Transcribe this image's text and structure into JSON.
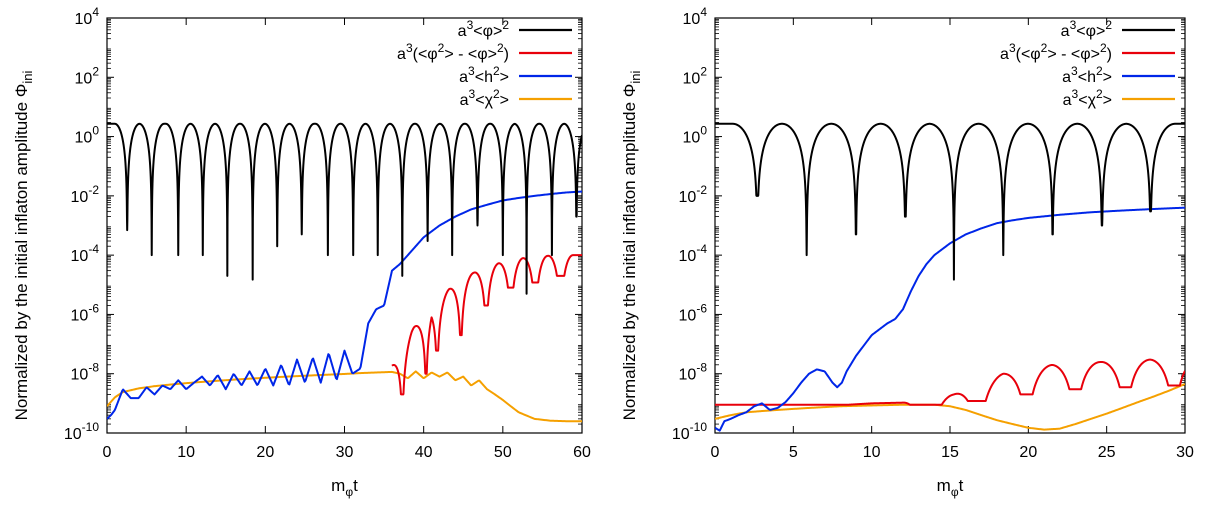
{
  "chart_data": [
    {
      "type": "line",
      "xlabel": "m_φ t",
      "ylabel": "Normalized by the initial inflaton amplitude Φ_ini",
      "xlim": [
        0,
        60
      ],
      "ylim": [
        1e-10,
        10000.0
      ],
      "yscale": "log",
      "grid": false,
      "legend_position": "top-right",
      "x_ticks": [
        0,
        10,
        20,
        30,
        40,
        50,
        60
      ],
      "y_ticks": [
        {
          "base": "10",
          "exp": "4"
        },
        {
          "base": "10",
          "exp": "2"
        },
        {
          "base": "10",
          "exp": "0"
        },
        {
          "base": "10",
          "exp": "-2"
        },
        {
          "base": "10",
          "exp": "-4"
        },
        {
          "base": "10",
          "exp": "-6"
        },
        {
          "base": "10",
          "exp": "-8"
        },
        {
          "base": "10",
          "exp": "-10"
        }
      ],
      "series": [
        {
          "name": "a³<φ>²",
          "color": "#000000",
          "style": "oscillating_log",
          "peak": 2.7,
          "period": 3.14,
          "phase": 0.0,
          "dips": [
            [
              2.55,
              0.0007
            ],
            [
              5.65,
              0.0001
            ],
            [
              9.0,
              0.0001
            ],
            [
              12.1,
              0.0001
            ],
            [
              15.2,
              2e-05
            ],
            [
              18.4,
              1.5e-05
            ],
            [
              21.5,
              0.0002
            ],
            [
              24.6,
              0.0005
            ],
            [
              27.9,
              0.0001
            ],
            [
              31.1,
              0.0001
            ],
            [
              34.2,
              0.0001
            ],
            [
              37.3,
              2e-05
            ],
            [
              40.5,
              0.0003
            ],
            [
              43.6,
              0.0001
            ],
            [
              46.8,
              0.001
            ],
            [
              50.0,
              0.0001
            ],
            [
              53.0,
              5e-06
            ],
            [
              56.2,
              0.0001
            ],
            [
              59.3,
              0.002
            ]
          ]
        },
        {
          "name": "a³(<φ²> - <φ>²)",
          "color": "#e8000b",
          "style": "oscillating_log",
          "period": 3.14,
          "envelope": [
            [
              36,
              2e-08
            ],
            [
              38.5,
              3e-07
            ],
            [
              41.6,
              3e-06
            ],
            [
              44.7,
              1.6e-05
            ],
            [
              47.9,
              4e-05
            ],
            [
              51.0,
              7e-05
            ],
            [
              54.1,
              9e-05
            ],
            [
              57.3,
              0.0001
            ],
            [
              60,
              0.0001
            ]
          ],
          "dips": [
            [
              37.3,
              2e-09
            ],
            [
              40.3,
              1e-08
            ],
            [
              41.7,
              6e-08
            ],
            [
              44.7,
              2e-07
            ],
            [
              47.9,
              2e-06
            ],
            [
              51.0,
              8e-06
            ],
            [
              54.1,
              1.2e-05
            ],
            [
              57.3,
              2e-05
            ]
          ]
        },
        {
          "name": "a³<h²>",
          "color": "#0026e8",
          "style": "polyline",
          "x": [
            0,
            0.5,
            1,
            2,
            3,
            4,
            5,
            6,
            7,
            8,
            9,
            10,
            11,
            12,
            13,
            14,
            15,
            16,
            17,
            18,
            19,
            20,
            21,
            22,
            23,
            24,
            25,
            26,
            27,
            28,
            29,
            30,
            31,
            32,
            33,
            34,
            35,
            36,
            37,
            38,
            39,
            40,
            42,
            44,
            46,
            48,
            50,
            52,
            54,
            56,
            58,
            60
          ],
          "y": [
            3e-10,
            4e-10,
            6e-10,
            3e-09,
            1.5e-09,
            1.5e-09,
            3.5e-09,
            2e-09,
            4e-09,
            3e-09,
            6e-09,
            3e-09,
            5e-09,
            8e-09,
            4e-09,
            9e-09,
            3e-09,
            1e-08,
            4e-09,
            1.2e-08,
            4e-09,
            1.5e-08,
            4e-09,
            2e-08,
            4e-09,
            3e-08,
            5e-09,
            3.5e-08,
            5e-09,
            5e-08,
            6e-09,
            6e-08,
            1e-08,
            1.5e-08,
            5e-07,
            1.5e-06,
            2e-06,
            3e-05,
            5e-05,
            0.0001,
            0.0002,
            0.0004,
            0.001,
            0.002,
            0.0035,
            0.005,
            0.007,
            0.0085,
            0.01,
            0.0115,
            0.013,
            0.014
          ]
        },
        {
          "name": "a³<χ²>",
          "color": "#f5a000",
          "style": "polyline",
          "x": [
            0,
            1,
            2,
            4,
            6,
            8,
            10,
            12,
            14,
            16,
            18,
            20,
            22,
            24,
            26,
            28,
            30,
            32,
            34,
            36,
            37,
            38,
            39,
            40,
            41,
            42,
            43,
            44,
            45,
            46,
            47,
            48,
            49,
            50,
            51,
            52,
            54,
            56,
            58,
            60
          ],
          "y": [
            8e-10,
            1.6e-09,
            2.4e-09,
            3.2e-09,
            3.8e-09,
            4.3e-09,
            4.8e-09,
            5.3e-09,
            5.8e-09,
            6.3e-09,
            6.8e-09,
            7.3e-09,
            7.8e-09,
            8.3e-09,
            8.8e-09,
            9.3e-09,
            9.8e-09,
            1.05e-08,
            1.1e-08,
            1.15e-08,
            1e-08,
            7e-09,
            1.2e-08,
            7e-09,
            1.1e-08,
            8e-09,
            1.1e-08,
            6e-09,
            8e-09,
            4e-09,
            6e-09,
            3e-09,
            2e-09,
            1.3e-09,
            8e-10,
            5e-10,
            3e-10,
            2.6e-10,
            2.5e-10,
            2.5e-10
          ]
        }
      ]
    },
    {
      "type": "line",
      "xlabel": "m_φ t",
      "ylabel": "Normalized by the initial inflaton amplitude Φ_ini",
      "xlim": [
        0,
        30
      ],
      "ylim": [
        1e-10,
        10000.0
      ],
      "yscale": "log",
      "grid": false,
      "legend_position": "top-right",
      "x_ticks": [
        0,
        5,
        10,
        15,
        20,
        25,
        30
      ],
      "y_ticks": [
        {
          "base": "10",
          "exp": "4"
        },
        {
          "base": "10",
          "exp": "2"
        },
        {
          "base": "10",
          "exp": "0"
        },
        {
          "base": "10",
          "exp": "-2"
        },
        {
          "base": "10",
          "exp": "-4"
        },
        {
          "base": "10",
          "exp": "-6"
        },
        {
          "base": "10",
          "exp": "-8"
        },
        {
          "base": "10",
          "exp": "-10"
        }
      ],
      "series": [
        {
          "name": "a³<φ>²",
          "color": "#000000",
          "style": "oscillating_log",
          "peak": 2.7,
          "period": 3.14,
          "phase": -1.0,
          "dips": [
            [
              2.7,
              0.01
            ],
            [
              5.85,
              0.0001
            ],
            [
              9.0,
              0.0005
            ],
            [
              12.15,
              0.002
            ],
            [
              15.25,
              1.5e-05
            ],
            [
              18.4,
              0.0001
            ],
            [
              21.55,
              0.0005
            ],
            [
              24.7,
              0.001
            ],
            [
              27.8,
              0.003
            ]
          ]
        },
        {
          "name": "a³(<φ²> - <φ>²)",
          "color": "#e8000b",
          "style": "oscillating_log",
          "period": 3.14,
          "envelope": [
            [
              0,
              2e-10
            ],
            [
              5,
              7e-10
            ],
            [
              10,
              1e-09
            ],
            [
              13.5,
              1.1e-09
            ],
            [
              15.25,
              2e-09
            ],
            [
              18.4,
              1e-08
            ],
            [
              21.55,
              2e-08
            ],
            [
              24.7,
              2.5e-08
            ],
            [
              27.8,
              3e-08
            ],
            [
              30,
              3e-08
            ]
          ],
          "dips": [
            [
              13.6,
              9e-10
            ],
            [
              16.8,
              1.2e-09
            ],
            [
              19.9,
              2e-09
            ],
            [
              23.0,
              3e-09
            ],
            [
              26.2,
              3.5e-09
            ],
            [
              29.3,
              4e-09
            ]
          ]
        },
        {
          "name": "a³<h²>",
          "color": "#0026e8",
          "style": "polyline",
          "x": [
            0,
            0.3,
            0.6,
            1,
            1.5,
            2,
            2.5,
            3,
            3.5,
            4,
            4.5,
            5,
            5.5,
            6,
            6.5,
            7,
            7.5,
            7.8,
            8.1,
            8.4,
            9,
            10,
            11,
            11.5,
            12,
            12.5,
            13,
            13.5,
            14,
            15,
            16,
            17,
            18,
            19,
            20,
            22,
            24,
            26,
            28,
            30
          ],
          "y": [
            1.5e-10,
            1.2e-10,
            2.5e-10,
            3e-10,
            4e-10,
            5e-10,
            8e-10,
            1e-09,
            6e-10,
            7e-10,
            1.1e-09,
            2.2e-09,
            5e-09,
            1e-08,
            1.4e-08,
            1.2e-08,
            5e-09,
            3.5e-09,
            5e-09,
            1.2e-08,
            4e-08,
            2e-07,
            5e-07,
            7e-07,
            1.5e-06,
            6e-06,
            2e-05,
            5e-05,
            0.0001,
            0.00025,
            0.0005,
            0.0008,
            0.0012,
            0.0015,
            0.0018,
            0.0023,
            0.0028,
            0.0032,
            0.0036,
            0.004
          ]
        },
        {
          "name": "a³<χ²>",
          "color": "#f5a000",
          "style": "polyline",
          "x": [
            0,
            1,
            2,
            3,
            4,
            5,
            6,
            8,
            10,
            12,
            14,
            15,
            16,
            17,
            18,
            19,
            20,
            21,
            22,
            23,
            24,
            25,
            26,
            27,
            28,
            29,
            30
          ],
          "y": [
            3e-10,
            4e-10,
            5e-10,
            5.5e-10,
            6e-10,
            6.5e-10,
            7e-10,
            8e-10,
            8.5e-10,
            9e-10,
            9e-10,
            8e-10,
            6e-10,
            4e-10,
            2.7e-10,
            2e-10,
            1.5e-10,
            1.3e-10,
            1.4e-10,
            2e-10,
            3e-10,
            4.5e-10,
            7e-10,
            1.1e-09,
            1.7e-09,
            2.7e-09,
            4.5e-09
          ]
        }
      ]
    }
  ]
}
